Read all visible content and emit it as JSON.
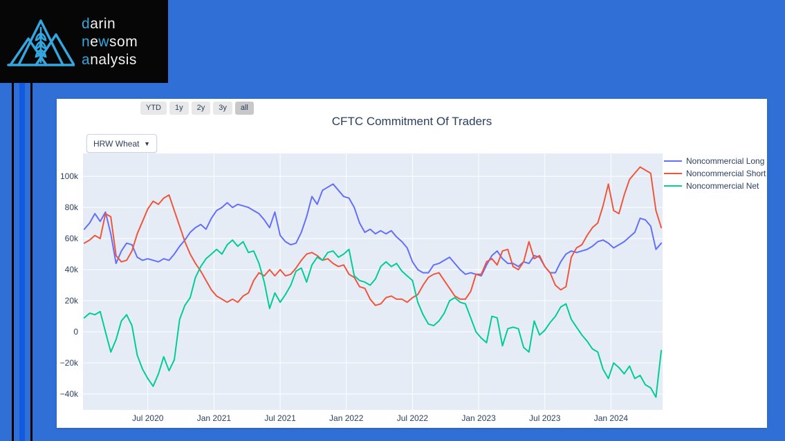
{
  "page": {
    "background": "#3070d6",
    "stripe_dark": "#000000",
    "stripe_bright": "#0f5ae0"
  },
  "logo": {
    "accent_color": "#35a7e0",
    "line1": {
      "accent": "d",
      "rest": "arin"
    },
    "line2": {
      "accent": "n",
      "mid": "e",
      "accent2": "w",
      "rest": "som"
    },
    "line3": {
      "accent": "a",
      "rest": "nalysis"
    }
  },
  "toolbar": {
    "range_buttons": [
      {
        "label": "YTD",
        "active": false
      },
      {
        "label": "1y",
        "active": false
      },
      {
        "label": "2y",
        "active": false
      },
      {
        "label": "3y",
        "active": false
      },
      {
        "label": "all",
        "active": true
      }
    ],
    "dropdown": {
      "value": "HRW Wheat"
    }
  },
  "chart_data": {
    "type": "line",
    "title": "CFTC Commitment Of Traders",
    "plot_bg": "#e5ecf6",
    "grid_color": "#ffffff",
    "legend_position": "right-top",
    "x_range": [
      2020.01,
      2024.39
    ],
    "y_range": [
      -50.2,
      114.7
    ],
    "x_start": 2020.02,
    "x_step": 0.04,
    "x_axis": {
      "ticks": [
        {
          "t": 2020.5,
          "label": "Jul 2020"
        },
        {
          "t": 2021.0,
          "label": "Jan 2021"
        },
        {
          "t": 2021.5,
          "label": "Jul 2021"
        },
        {
          "t": 2022.0,
          "label": "Jan 2022"
        },
        {
          "t": 2022.5,
          "label": "Jul 2022"
        },
        {
          "t": 2023.0,
          "label": "Jan 2023"
        },
        {
          "t": 2023.5,
          "label": "Jul 2023"
        },
        {
          "t": 2024.0,
          "label": "Jan 2024"
        }
      ]
    },
    "y_axis": {
      "ticks": [
        {
          "v": 100,
          "label": "100k"
        },
        {
          "v": 80,
          "label": "80k"
        },
        {
          "v": 60,
          "label": "60k"
        },
        {
          "v": 40,
          "label": "40k"
        },
        {
          "v": 20,
          "label": "20k"
        },
        {
          "v": 0,
          "label": "0"
        },
        {
          "v": -20,
          "label": "−20k"
        },
        {
          "v": -40,
          "label": "−40k"
        }
      ]
    },
    "series": [
      {
        "name": "Noncommercial Long",
        "color": "#636efa",
        "values": [
          66,
          70,
          76,
          71,
          77,
          63,
          44,
          52,
          57,
          56,
          48,
          46,
          47,
          46,
          45,
          47,
          46,
          50,
          55,
          59,
          64,
          67,
          69,
          66,
          73,
          78,
          80,
          83,
          80,
          82,
          81,
          80,
          78,
          76,
          72,
          67,
          77,
          62,
          58,
          56,
          57,
          64,
          74,
          87,
          82,
          91,
          93,
          95,
          91,
          87,
          86,
          80,
          70,
          64,
          66,
          63,
          65,
          63,
          65,
          61,
          58,
          54,
          45,
          40,
          38,
          38,
          43,
          44,
          46,
          48,
          44,
          40,
          37,
          38,
          37,
          36,
          43,
          49,
          52,
          47,
          44,
          44,
          42,
          45,
          44,
          49,
          48,
          42,
          38,
          38,
          45,
          50,
          52,
          51,
          52,
          53,
          55,
          58,
          59,
          57,
          54,
          56,
          58,
          61,
          64,
          73,
          72,
          68,
          53,
          57
        ]
      },
      {
        "name": "Noncommercial Short",
        "color": "#ef553b",
        "values": [
          57,
          59,
          62,
          60,
          76,
          74,
          49,
          45,
          46,
          52,
          63,
          71,
          79,
          84,
          82,
          86,
          88,
          78,
          68,
          58,
          50,
          44,
          39,
          33,
          27,
          23,
          21,
          19,
          21,
          19,
          23,
          25,
          33,
          38,
          36,
          40,
          36,
          40,
          36,
          37,
          41,
          46,
          50,
          51,
          49,
          46,
          47,
          44,
          42,
          43,
          37,
          35,
          29,
          28,
          21,
          17,
          18,
          22,
          23,
          21,
          21,
          19,
          22,
          24,
          30,
          35,
          37,
          38,
          33,
          28,
          23,
          21,
          21,
          26,
          37,
          37,
          45,
          47,
          43,
          52,
          53,
          42,
          40,
          45,
          58,
          47,
          49,
          42,
          38,
          30,
          27,
          29,
          48,
          54,
          56,
          62,
          67,
          70,
          81,
          95,
          78,
          76,
          88,
          98,
          102,
          106,
          104,
          102,
          78,
          67
        ]
      },
      {
        "name": "Noncommercial Net",
        "color": "#00cc96",
        "values": [
          9,
          12,
          11,
          13,
          0,
          -13,
          -5,
          7,
          11,
          4,
          -15,
          -24,
          -30,
          -35,
          -27,
          -16,
          -25,
          -18,
          8,
          17,
          22,
          35,
          42,
          47,
          50,
          53,
          50,
          56,
          59,
          55,
          58,
          51,
          52,
          44,
          32,
          15,
          25,
          19,
          24,
          30,
          39,
          41,
          32,
          43,
          48,
          46,
          51,
          52,
          48,
          50,
          53,
          36,
          33,
          32,
          30,
          34,
          42,
          45,
          42,
          44,
          39,
          36,
          33,
          19,
          11,
          5,
          4,
          7,
          12,
          20,
          22,
          19,
          18,
          9,
          0,
          -4,
          -7,
          10,
          9,
          -9,
          2,
          3,
          2,
          -10,
          -13,
          7,
          -2,
          1,
          6,
          10,
          16,
          18,
          8,
          3,
          -2,
          -6,
          -11,
          -13,
          -24,
          -30,
          -20,
          -23,
          -27,
          -22,
          -30,
          -28,
          -34,
          -36,
          -42,
          -12
        ]
      }
    ]
  }
}
